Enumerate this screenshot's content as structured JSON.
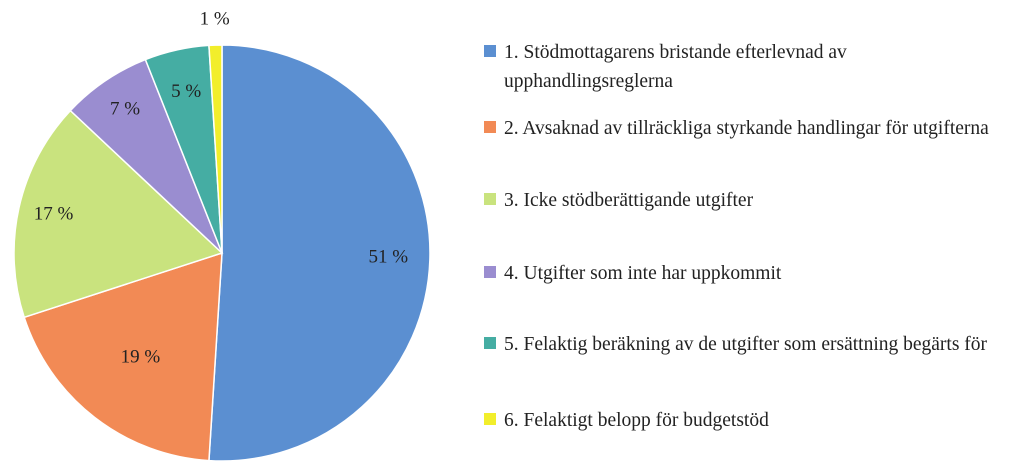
{
  "chart_data": {
    "type": "pie",
    "categories": [
      "1. Stödmottagarens bristande efterlevnad av upphandlingsreglerna",
      "2. Avsaknad av tillräckliga styrkande handlingar för utgifterna",
      "3. Icke stödberättigande utgifter",
      "4. Utgifter som inte har uppkommit",
      "5. Felaktig beräkning av de utgifter som ersättning begärts för",
      "6. Felaktigt belopp för budgetstöd"
    ],
    "values": [
      51,
      19,
      17,
      7,
      5,
      1
    ],
    "data_labels": [
      "51 %",
      "19 %",
      "17 %",
      "7 %",
      "5 %",
      "1 %"
    ],
    "colors": [
      "#5B8FD1",
      "#F28A55",
      "#C9E37E",
      "#9A8DD0",
      "#45ADA3",
      "#F2EE2B"
    ],
    "legend_position": "right"
  }
}
